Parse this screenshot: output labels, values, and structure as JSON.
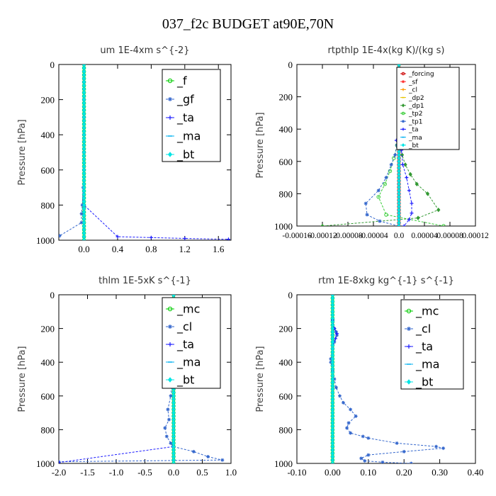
{
  "figure_title": "037_f2c  BUDGET at90E,70N",
  "chart_data": [
    {
      "type": "line",
      "title": "um   1E-4xm s^{-2}",
      "ylabel": "Pressure [hPa]",
      "xlim": [
        -0.3,
        1.75
      ],
      "ylim": [
        1000,
        0
      ],
      "xticks": [
        0.0,
        0.4,
        0.8,
        1.2,
        1.6
      ],
      "xtick_labels": [
        "0.0",
        "0.4",
        "0.8",
        "1.2",
        "1.6"
      ],
      "yticks": [
        0,
        200,
        400,
        600,
        800,
        1000
      ],
      "legend_position": "top-right",
      "legend_font": 16,
      "series": [
        {
          "name": "_f",
          "color": "#00cc00",
          "marker": "circle",
          "x": [
            0,
            0,
            0,
            0,
            0,
            0,
            0,
            0,
            0,
            0,
            0
          ],
          "y": [
            0,
            100,
            200,
            300,
            400,
            500,
            600,
            700,
            800,
            900,
            1000
          ]
        },
        {
          "name": "_gf",
          "color": "#3366cc",
          "marker": "star",
          "x": [
            0,
            0,
            0,
            0,
            0,
            0,
            0,
            -0.01,
            -0.02,
            -0.03,
            -0.03,
            -0.29
          ],
          "y": [
            0,
            100,
            200,
            300,
            400,
            500,
            600,
            700,
            800,
            850,
            900,
            975
          ]
        },
        {
          "name": "_ta",
          "color": "#1a1aff",
          "marker": "plus",
          "x": [
            0,
            0,
            0,
            0,
            0,
            0,
            0,
            0,
            0,
            0.4,
            0.8,
            1.2,
            1.72
          ],
          "y": [
            0,
            100,
            200,
            300,
            400,
            500,
            600,
            700,
            800,
            980,
            985,
            990,
            995
          ]
        },
        {
          "name": "_ma",
          "color": "#00b0f0",
          "marker": "dash",
          "x": [
            0,
            0,
            0,
            0,
            0,
            0,
            0,
            0,
            0,
            0
          ],
          "y": [
            0,
            100,
            200,
            300,
            400,
            500,
            600,
            700,
            800,
            1000
          ]
        },
        {
          "name": "_bt",
          "color": "#00e5e5",
          "marker": "diamond",
          "x": [
            0,
            0,
            0,
            0,
            0,
            0,
            0,
            0,
            0,
            0,
            0
          ],
          "y": [
            0,
            100,
            200,
            300,
            400,
            500,
            600,
            700,
            800,
            900,
            1000
          ]
        }
      ]
    },
    {
      "type": "line",
      "title": "rtpthlp   1E-4x(kg K)/(kg s)",
      "ylabel": "Pressure [hPa]",
      "xlim": [
        -0.00016,
        0.00012
      ],
      "ylim": [
        1000,
        0
      ],
      "xticks": [
        -0.00016,
        -0.00012,
        -8e-05,
        -4e-05,
        0.0,
        4e-05,
        8e-05,
        0.00012
      ],
      "xtick_labels": [
        "-0.00016",
        "-0.00012",
        "-0.00008",
        "-0.00004",
        "0.0",
        "0.00004",
        "0.00008",
        "0.00012"
      ],
      "yticks": [
        0,
        200,
        400,
        600,
        800,
        1000
      ],
      "legend_position": "top-right",
      "legend_font": 9,
      "series": [
        {
          "name": "_forcing",
          "color": "#cc0000",
          "marker": "circle",
          "x": [
            0,
            0,
            0,
            0,
            0,
            0,
            0,
            0,
            0,
            0,
            0
          ],
          "y": [
            0,
            100,
            200,
            300,
            400,
            500,
            600,
            700,
            800,
            900,
            1000
          ]
        },
        {
          "name": "_sf",
          "color": "#ff3333",
          "marker": "star",
          "x": [
            0,
            0,
            0,
            0,
            0,
            0,
            0,
            0,
            0,
            0,
            0
          ],
          "y": [
            0,
            100,
            200,
            300,
            400,
            500,
            600,
            700,
            800,
            900,
            1000
          ]
        },
        {
          "name": "_cl",
          "color": "#ff9900",
          "marker": "plus",
          "x": [
            0,
            0,
            0,
            0,
            0,
            0,
            0,
            0,
            0,
            0,
            0
          ],
          "y": [
            0,
            100,
            200,
            300,
            400,
            500,
            600,
            700,
            800,
            900,
            1000
          ]
        },
        {
          "name": "_dp2",
          "color": "#e6c300",
          "marker": "dash",
          "x": [
            0,
            0,
            0,
            0,
            0,
            0,
            0,
            0,
            0,
            0,
            0
          ],
          "y": [
            0,
            100,
            200,
            300,
            400,
            500,
            600,
            700,
            800,
            900,
            1000
          ]
        },
        {
          "name": "_dp1",
          "color": "#339933",
          "marker": "diamond",
          "x": [
            0,
            0,
            0,
            2e-06,
            5e-06,
            1e-05,
            1.8e-05,
            2.8e-05,
            4.5e-05,
            6.2e-05,
            3e-05,
            -0.00012
          ],
          "y": [
            0,
            200,
            400,
            500,
            560,
            620,
            680,
            740,
            800,
            900,
            950,
            1000
          ]
        },
        {
          "name": "_tp2",
          "color": "#33cc33",
          "marker": "circle",
          "x": [
            0,
            0,
            0,
            -3e-06,
            -8e-06,
            -1.4e-05,
            -2.2e-05,
            -3.2e-05,
            -2e-05,
            7e-05
          ],
          "y": [
            0,
            200,
            400,
            500,
            580,
            660,
            740,
            820,
            930,
            1000
          ]
        },
        {
          "name": "_tp1",
          "color": "#3366cc",
          "marker": "star",
          "x": [
            0,
            0,
            0,
            -3e-06,
            -6e-06,
            -1.2e-05,
            -2e-05,
            -3.2e-05,
            -5.2e-05,
            -5e-05,
            -3e-05,
            0
          ],
          "y": [
            0,
            200,
            400,
            500,
            560,
            620,
            700,
            780,
            860,
            930,
            970,
            1000
          ]
        },
        {
          "name": "_ta",
          "color": "#1a1aff",
          "marker": "plus",
          "x": [
            0,
            0,
            0,
            -4e-06,
            4e-06,
            6e-06,
            1.2e-05,
            1.6e-05,
            2e-05,
            2e-05,
            1.6e-05,
            8e-06
          ],
          "y": [
            0,
            200,
            400,
            470,
            530,
            620,
            700,
            780,
            860,
            920,
            960,
            1000
          ]
        },
        {
          "name": "_ma",
          "color": "#00b0f0",
          "marker": "dash",
          "x": [
            0,
            0,
            0,
            0,
            0,
            0,
            0,
            0,
            0,
            0,
            0
          ],
          "y": [
            0,
            100,
            200,
            300,
            400,
            500,
            600,
            700,
            800,
            900,
            1000
          ]
        },
        {
          "name": "_bt",
          "color": "#00e5e5",
          "marker": "diamond",
          "x": [
            0,
            0,
            0,
            0,
            0,
            0,
            0,
            0,
            0,
            0,
            0
          ],
          "y": [
            0,
            100,
            200,
            300,
            400,
            500,
            600,
            700,
            800,
            900,
            1000
          ]
        }
      ]
    },
    {
      "type": "line",
      "title": "thlm   1E-5xK s^{-1}",
      "ylabel": "Pressure [hPa]",
      "xlim": [
        -2.0,
        1.0
      ],
      "ylim": [
        1000,
        0
      ],
      "xticks": [
        -2.0,
        -1.5,
        -1.0,
        -0.5,
        0.0,
        0.5,
        1.0
      ],
      "xtick_labels": [
        "-2.0",
        "-1.5",
        "-1.0",
        "-0.5",
        "0.0",
        "0.5",
        "1.0"
      ],
      "yticks": [
        0,
        200,
        400,
        600,
        800,
        1000
      ],
      "legend_position": "top-right",
      "legend_font": 16,
      "series": [
        {
          "name": "_mc",
          "color": "#00cc00",
          "marker": "circle",
          "x": [
            0,
            0,
            0,
            0,
            0,
            0,
            0,
            0,
            0,
            0,
            0
          ],
          "y": [
            0,
            100,
            200,
            300,
            400,
            500,
            600,
            700,
            800,
            900,
            1000
          ]
        },
        {
          "name": "_cl",
          "color": "#3366cc",
          "marker": "star",
          "x": [
            0,
            0,
            0,
            0,
            0,
            -0.02,
            -0.05,
            -0.1,
            -0.08,
            -0.15,
            -0.12,
            -0.05,
            -0.01,
            0.35,
            0.6,
            0.85,
            -2.0
          ],
          "y": [
            0,
            100,
            200,
            300,
            400,
            500,
            600,
            680,
            740,
            790,
            840,
            880,
            900,
            930,
            960,
            980,
            990
          ]
        },
        {
          "name": "_ta",
          "color": "#1a1aff",
          "marker": "plus",
          "x": [
            0,
            0,
            0,
            0,
            0,
            0,
            0,
            0,
            0,
            0,
            -2.0
          ],
          "y": [
            0,
            100,
            200,
            300,
            400,
            500,
            600,
            700,
            800,
            900,
            995
          ]
        },
        {
          "name": "_ma",
          "color": "#00b0f0",
          "marker": "dash",
          "x": [
            0,
            0,
            0,
            0,
            0,
            0,
            0,
            0,
            0,
            0,
            0
          ],
          "y": [
            0,
            100,
            200,
            300,
            400,
            500,
            600,
            700,
            800,
            900,
            1000
          ]
        },
        {
          "name": "_bt",
          "color": "#00e5e5",
          "marker": "diamond",
          "x": [
            0,
            0,
            0,
            0,
            0,
            0,
            0,
            0,
            0,
            0,
            0
          ],
          "y": [
            0,
            100,
            200,
            300,
            400,
            500,
            600,
            700,
            800,
            900,
            1000
          ]
        }
      ]
    },
    {
      "type": "line",
      "title": "rtm   1E-8xkg kg^{-1} s^{-1}",
      "ylabel": "Pressure [hPa]",
      "xlim": [
        -0.1,
        0.4
      ],
      "ylim": [
        1000,
        0
      ],
      "xticks": [
        -0.1,
        0.0,
        0.1,
        0.2,
        0.3,
        0.4
      ],
      "xtick_labels": [
        "-0.10",
        "0.00",
        "0.10",
        "0.20",
        "0.30",
        "0.40"
      ],
      "yticks": [
        0,
        200,
        400,
        600,
        800,
        1000
      ],
      "legend_position": "top-right",
      "legend_font": 16,
      "series": [
        {
          "name": "_mc",
          "color": "#00cc00",
          "marker": "circle",
          "x": [
            0,
            0,
            0,
            0,
            0,
            0,
            0,
            0,
            0,
            0,
            0
          ],
          "y": [
            0,
            100,
            200,
            300,
            400,
            500,
            600,
            700,
            800,
            900,
            1000
          ]
        },
        {
          "name": "_cl",
          "color": "#3366cc",
          "marker": "star",
          "x": [
            0,
            0,
            0.005,
            0.01,
            0.012,
            0.005,
            0.0,
            -0.005,
            -0.005,
            0.0,
            0.005,
            0.01,
            0.02,
            0.03,
            0.05,
            0.065,
            0.045,
            0.04,
            0.05,
            0.085,
            0.1,
            0.18,
            0.29,
            0.31,
            0.2,
            0.1,
            0.08,
            0.09,
            0.14,
            0.22
          ],
          "y": [
            0,
            150,
            200,
            220,
            240,
            280,
            320,
            380,
            400,
            450,
            500,
            550,
            600,
            640,
            680,
            720,
            760,
            790,
            820,
            840,
            850,
            880,
            900,
            910,
            930,
            950,
            970,
            985,
            993,
            1000
          ]
        },
        {
          "name": "_ta",
          "color": "#1a1aff",
          "marker": "plus",
          "x": [
            0,
            0,
            0.005,
            0.012,
            0.008,
            0.0,
            0.0
          ],
          "y": [
            0,
            150,
            200,
            230,
            260,
            300,
            1000
          ]
        },
        {
          "name": "_ma",
          "color": "#00b0f0",
          "marker": "dash",
          "x": [
            0,
            0,
            0,
            0,
            0,
            0,
            0,
            0,
            0,
            0,
            0
          ],
          "y": [
            0,
            100,
            200,
            300,
            400,
            500,
            600,
            700,
            800,
            900,
            1000
          ]
        },
        {
          "name": "_bt",
          "color": "#00e5e5",
          "marker": "diamond",
          "x": [
            0,
            0,
            0,
            0,
            0,
            0,
            0,
            0,
            0,
            0,
            0
          ],
          "y": [
            0,
            100,
            200,
            300,
            400,
            500,
            600,
            700,
            800,
            900,
            1000
          ]
        }
      ]
    }
  ]
}
